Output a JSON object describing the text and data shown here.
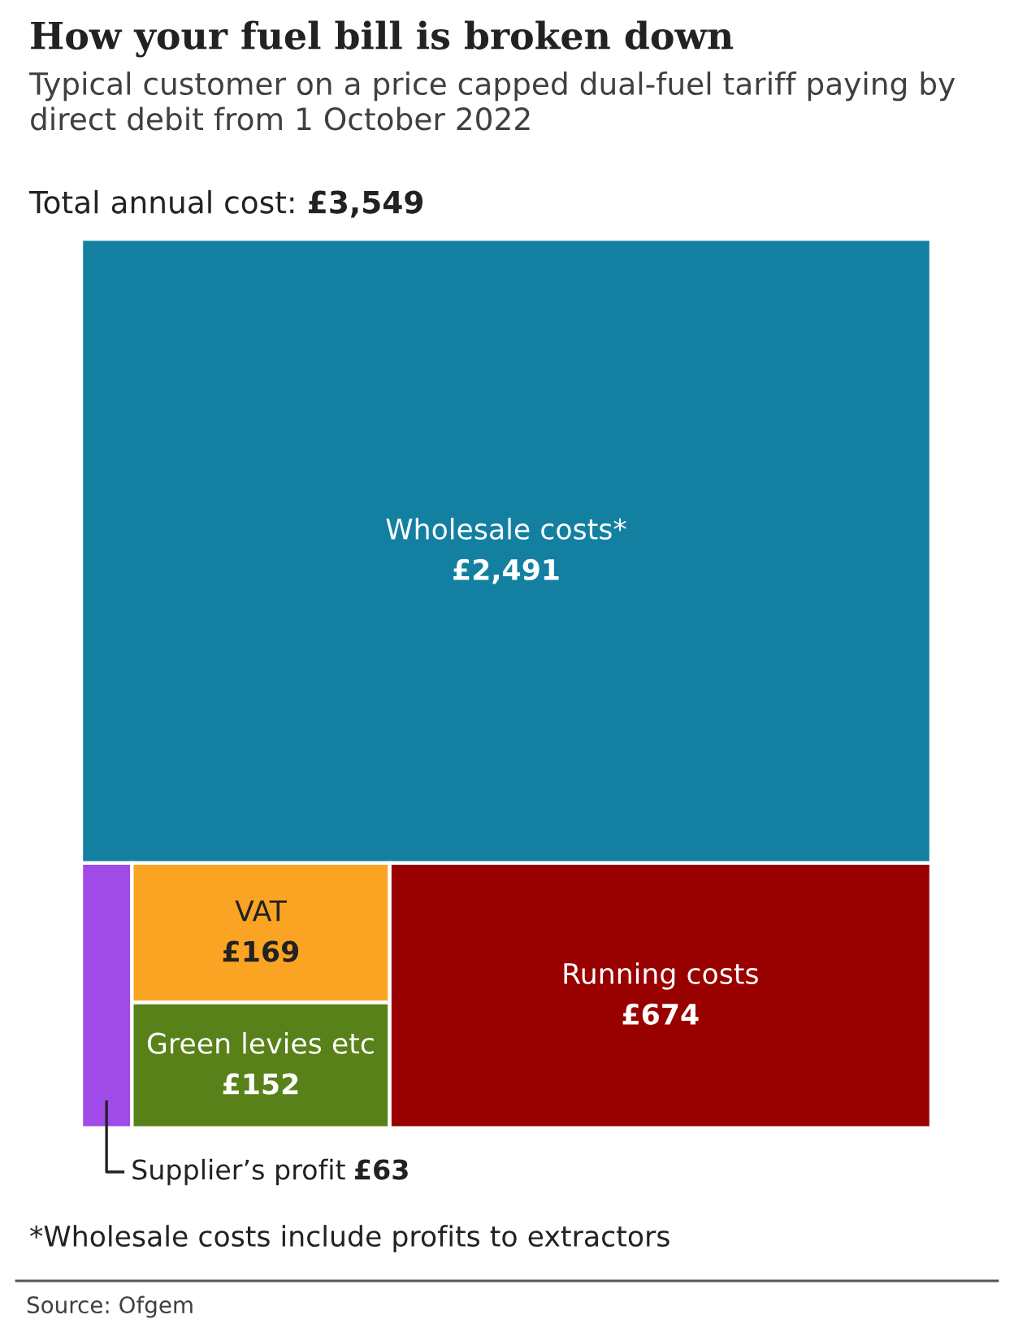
{
  "chart_data": {
    "type": "other",
    "title": "How your fuel bill is broken down",
    "subtitle": "Typical customer on a price capped dual-fuel tariff paying by direct debit from 1 October 2022",
    "categories": [
      "Wholesale costs*",
      "Supplier’s profit",
      "VAT",
      "Green levies etc",
      "Running costs"
    ],
    "values": [
      2491,
      63,
      169,
      152,
      674
    ],
    "value_labels": [
      "£2,491",
      "£63",
      "£169",
      "£152",
      "£674"
    ],
    "colors": [
      "#1380a1",
      "#a04ae8",
      "#fba424",
      "#588119",
      "#990000"
    ],
    "totals": [
      "£3,549"
    ],
    "annotations": [
      "Total annual cost:",
      "*Wholesale costs include profits to extractors",
      "Source: Ofgem"
    ]
  }
}
